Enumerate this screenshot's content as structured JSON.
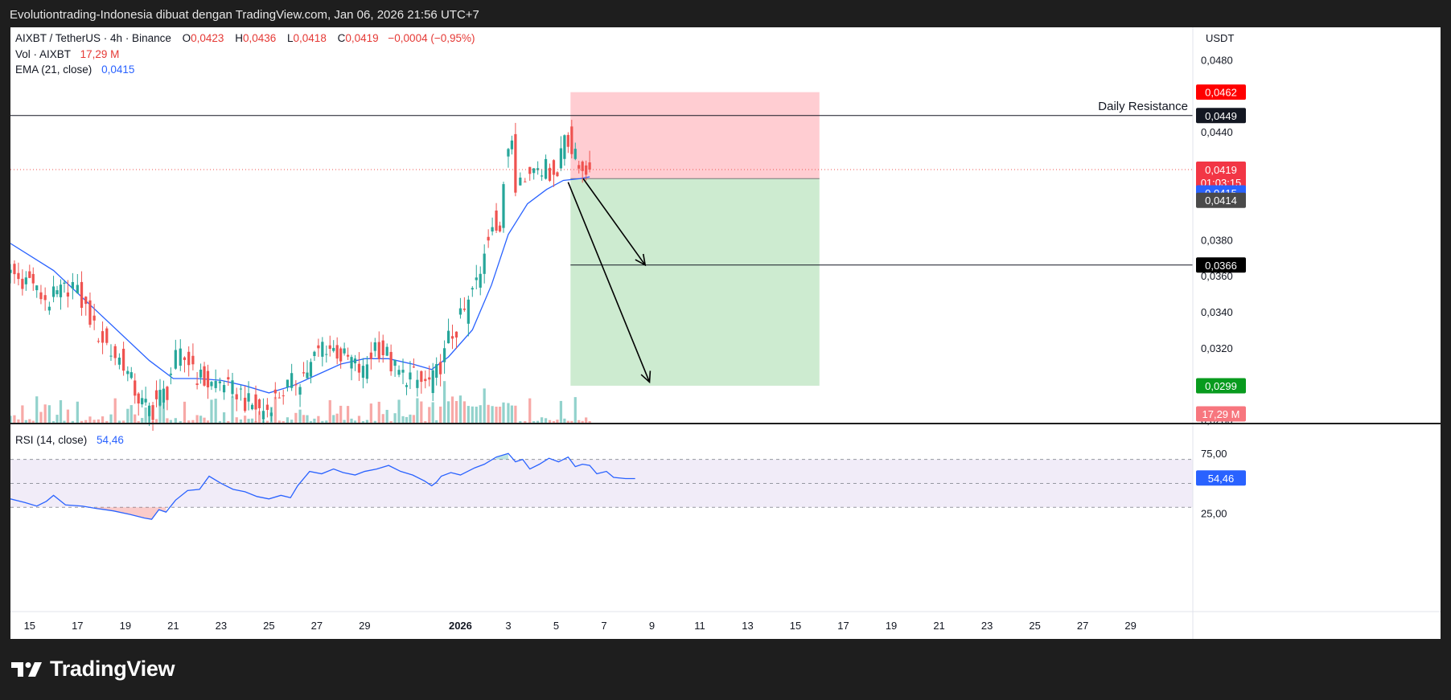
{
  "header": {
    "title": "Evolutiontrading-Indonesia dibuat dengan TradingView.com, Jan 06, 2026 21:56 UTC+7"
  },
  "legend": {
    "symbol": "AIXBT / TetherUS · 4h · Binance",
    "o_label": "O",
    "o_value": "0,0423",
    "h_label": "H",
    "h_value": "0,0436",
    "l_label": "L",
    "l_value": "0,0418",
    "c_label": "C",
    "c_value": "0,0419",
    "change": "−0,0004 (−0,95%)",
    "vol_label": "Vol · AIXBT",
    "vol_value": "17,29 M",
    "ema_label": "EMA (21, close)",
    "ema_value": "0,0415"
  },
  "rsi_legend": {
    "label": "RSI (14, close)",
    "value": "54,46"
  },
  "currency": "USDT",
  "annotations": {
    "resistance_label": "Daily Resistance"
  },
  "brand": {
    "name": "TradingView"
  },
  "colors": {
    "up": "#26a69a",
    "down": "#ef5350",
    "ema": "#2962ff",
    "rsi": "#2962ff",
    "stop_zone": "#ffcdd2",
    "target_zone": "#cdebd0"
  },
  "chart_data": {
    "type": "candlestick",
    "price_axis": {
      "labels": [
        "0,0480",
        "0,0440",
        "0,0380",
        "0,0360",
        "0,0340",
        "0,0320",
        "0,0280"
      ],
      "values": [
        0.048,
        0.044,
        0.038,
        0.036,
        0.034,
        0.032,
        0.028
      ],
      "ylim": [
        0.0278,
        0.0498
      ]
    },
    "x_axis": {
      "labels": [
        "15",
        "17",
        "19",
        "21",
        "23",
        "25",
        "27",
        "29",
        "2026",
        "3",
        "5",
        "7",
        "9",
        "11",
        "13",
        "15",
        "17",
        "19",
        "21",
        "23",
        "25",
        "27",
        "29"
      ],
      "days": [
        -17,
        -15,
        -13,
        -11,
        -9,
        -7,
        -5,
        -3,
        1,
        3,
        5,
        7,
        9,
        11,
        13,
        15,
        17,
        19,
        21,
        23,
        25,
        27,
        29
      ],
      "xlim": [
        -17.8,
        31.6
      ]
    },
    "last_price": {
      "value": 0.0419,
      "label": "0,0419",
      "countdown": "01:03:15"
    },
    "ema_value": {
      "value": 0.0415,
      "label": "0,0415"
    },
    "entry": {
      "value": 0.0414,
      "label": "0,0414"
    },
    "stop": {
      "value": 0.0462,
      "label": "0,0462"
    },
    "resistance": {
      "value": 0.0449,
      "label": "0,0449"
    },
    "target1": {
      "value": 0.0366,
      "label": "0,0366"
    },
    "target2": {
      "value": 0.0299,
      "label": "0,0299"
    },
    "volume_last": {
      "label": "17,29 M"
    },
    "position": {
      "start_day": 5.6,
      "end_day": 16
    },
    "arrows": [
      {
        "from": [
          6.13,
          0.0414
        ],
        "to": [
          8.72,
          0.0366
        ]
      },
      {
        "from": [
          5.5,
          0.0412
        ],
        "to": [
          8.9,
          0.0301
        ]
      }
    ],
    "keypoints": [
      [
        -17.8,
        0.0366,
        0.0358
      ],
      [
        -17.3,
        0.0359,
        0.0357
      ],
      [
        -16.7,
        0.0352,
        0.0346
      ],
      [
        -16.0,
        0.0347,
        0.0352
      ],
      [
        -15.4,
        0.0353,
        0.0355
      ],
      [
        -15.0,
        0.0354,
        0.0337
      ],
      [
        -14.3,
        0.0333,
        0.0322
      ],
      [
        -13.6,
        0.0319,
        0.0312
      ],
      [
        -12.9,
        0.031,
        0.0292
      ],
      [
        -12.3,
        0.029,
        0.0285
      ],
      [
        -11.7,
        0.029,
        0.0296
      ],
      [
        -11.1,
        0.03,
        0.0313
      ],
      [
        -10.7,
        0.0316,
        0.0311
      ],
      [
        -10.0,
        0.0306,
        0.03
      ],
      [
        -9.4,
        0.0299,
        0.0302
      ],
      [
        -8.7,
        0.0298,
        0.0295
      ],
      [
        -8.0,
        0.0291,
        0.0287
      ],
      [
        -7.4,
        0.0285,
        0.0286
      ],
      [
        -6.9,
        0.0288,
        0.0294
      ],
      [
        -6.4,
        0.0295,
        0.0302
      ],
      [
        -5.7,
        0.0301,
        0.031
      ],
      [
        -5.1,
        0.0311,
        0.0322
      ],
      [
        -4.6,
        0.0322,
        0.0318
      ],
      [
        -4.0,
        0.0316,
        0.0313
      ],
      [
        -3.4,
        0.0312,
        0.0306
      ],
      [
        -2.9,
        0.0306,
        0.0322
      ],
      [
        -2.4,
        0.0321,
        0.0316
      ],
      [
        -1.9,
        0.0313,
        0.0306
      ],
      [
        -1.4,
        0.0305,
        0.0304
      ],
      [
        -0.8,
        0.0302,
        0.03
      ],
      [
        -0.3,
        0.03,
        0.0302
      ],
      [
        0.0,
        0.0301,
        0.0316
      ],
      [
        0.5,
        0.0322,
        0.033
      ],
      [
        1.0,
        0.0332,
        0.0344
      ],
      [
        1.5,
        0.0348,
        0.036
      ],
      [
        2.0,
        0.0366,
        0.0392
      ],
      [
        2.5,
        0.0393,
        0.038
      ],
      [
        2.8,
        0.0383,
        0.0412
      ],
      [
        3.0,
        0.0425,
        0.0441
      ],
      [
        3.3,
        0.0443,
        0.0412
      ],
      [
        3.5,
        0.0416,
        0.0412
      ],
      [
        3.9,
        0.0415,
        0.0425
      ],
      [
        4.4,
        0.0422,
        0.0418
      ],
      [
        4.9,
        0.0424,
        0.0415
      ],
      [
        5.2,
        0.0422,
        0.044
      ],
      [
        5.5,
        0.0444,
        0.0429
      ],
      [
        5.8,
        0.0431,
        0.042
      ],
      [
        6.1,
        0.0423,
        0.042
      ],
      [
        6.4,
        0.0423,
        0.0419
      ]
    ],
    "ema_points": [
      [
        -17.8,
        0.0378
      ],
      [
        -16.0,
        0.0363
      ],
      [
        -14.0,
        0.0338
      ],
      [
        -12.0,
        0.0313
      ],
      [
        -11.0,
        0.0303
      ],
      [
        -10.0,
        0.0303
      ],
      [
        -9.0,
        0.0302
      ],
      [
        -8.0,
        0.0299
      ],
      [
        -7.0,
        0.0295
      ],
      [
        -6.0,
        0.0299
      ],
      [
        -5.0,
        0.0305
      ],
      [
        -4.0,
        0.0311
      ],
      [
        -3.0,
        0.0314
      ],
      [
        -2.0,
        0.0314
      ],
      [
        -1.0,
        0.0311
      ],
      [
        -0.2,
        0.0308
      ],
      [
        0.5,
        0.0315
      ],
      [
        1.5,
        0.033
      ],
      [
        2.3,
        0.0355
      ],
      [
        3.0,
        0.0383
      ],
      [
        3.8,
        0.04
      ],
      [
        4.6,
        0.0408
      ],
      [
        5.3,
        0.0413
      ],
      [
        6.0,
        0.0414
      ],
      [
        6.4,
        0.0415
      ]
    ],
    "rsi": {
      "label": "RSI (14, close)",
      "value": 54.46,
      "value_label": "54,46",
      "axis_labels": [
        "75,00",
        "25,00"
      ],
      "axis_values": [
        75,
        25
      ],
      "band": [
        30,
        70
      ],
      "mid": 50,
      "ylim": [
        10,
        100
      ],
      "points": [
        [
          -17.8,
          37
        ],
        [
          -17.2,
          34
        ],
        [
          -16.7,
          31
        ],
        [
          -16.3,
          35
        ],
        [
          -16.0,
          40
        ],
        [
          -15.5,
          32
        ],
        [
          -14.8,
          31
        ],
        [
          -14.2,
          29
        ],
        [
          -13.5,
          27
        ],
        [
          -12.8,
          24
        ],
        [
          -12.2,
          21
        ],
        [
          -11.9,
          20
        ],
        [
          -11.6,
          28
        ],
        [
          -11.3,
          26
        ],
        [
          -10.9,
          36
        ],
        [
          -10.4,
          44
        ],
        [
          -9.9,
          45
        ],
        [
          -9.5,
          56
        ],
        [
          -9.0,
          50
        ],
        [
          -8.5,
          45
        ],
        [
          -8.0,
          43
        ],
        [
          -7.5,
          39
        ],
        [
          -7.0,
          37
        ],
        [
          -6.5,
          40
        ],
        [
          -6.1,
          38
        ],
        [
          -5.8,
          48
        ],
        [
          -5.3,
          60
        ],
        [
          -4.8,
          58
        ],
        [
          -4.3,
          62
        ],
        [
          -3.9,
          59
        ],
        [
          -3.4,
          57
        ],
        [
          -3.0,
          60
        ],
        [
          -2.5,
          62
        ],
        [
          -2.0,
          65
        ],
        [
          -1.5,
          60
        ],
        [
          -1.0,
          57
        ],
        [
          -0.5,
          52
        ],
        [
          -0.2,
          48
        ],
        [
          0.0,
          51
        ],
        [
          0.2,
          56
        ],
        [
          0.6,
          59
        ],
        [
          1.0,
          57
        ],
        [
          1.6,
          63
        ],
        [
          2.0,
          66
        ],
        [
          2.5,
          72
        ],
        [
          3.0,
          75
        ],
        [
          3.3,
          68
        ],
        [
          3.6,
          70
        ],
        [
          3.9,
          62
        ],
        [
          4.3,
          66
        ],
        [
          4.7,
          71
        ],
        [
          5.1,
          68
        ],
        [
          5.5,
          72
        ],
        [
          5.8,
          64
        ],
        [
          6.1,
          66
        ],
        [
          6.4,
          65
        ],
        [
          6.7,
          58
        ],
        [
          7.1,
          60
        ],
        [
          7.4,
          55
        ],
        [
          7.9,
          54
        ],
        [
          8.3,
          54
        ]
      ]
    }
  }
}
